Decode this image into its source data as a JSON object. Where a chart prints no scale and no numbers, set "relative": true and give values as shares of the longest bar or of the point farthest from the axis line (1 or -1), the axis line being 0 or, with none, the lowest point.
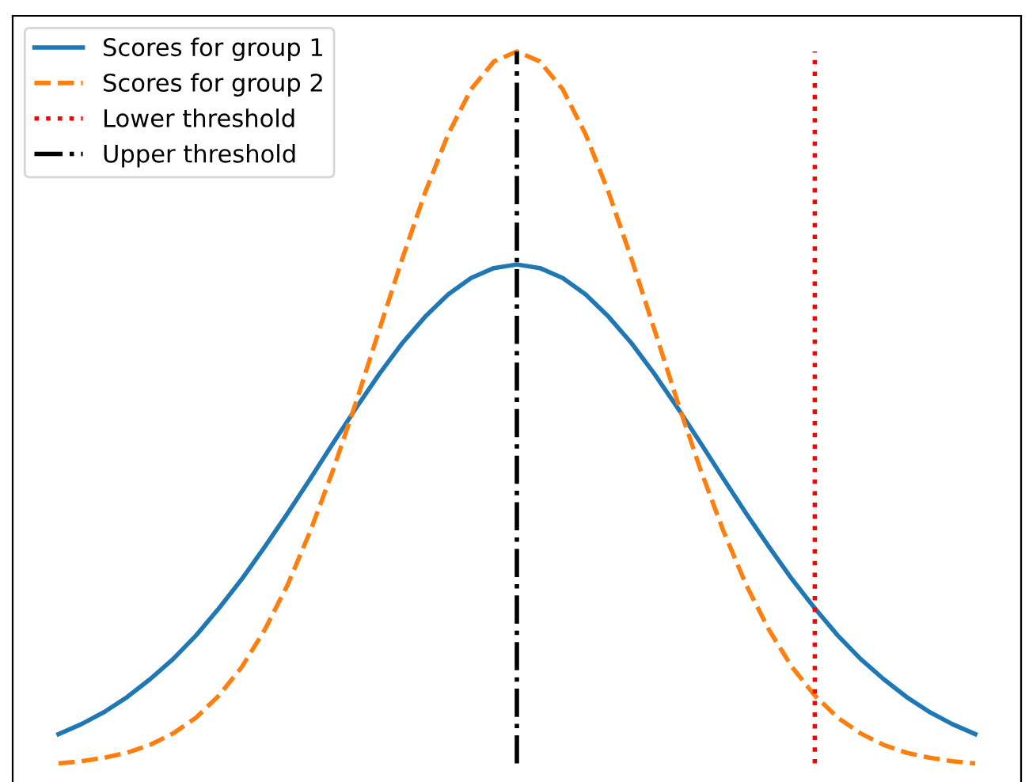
{
  "chart_data": {
    "type": "line",
    "relative": true,
    "tick_labels": false,
    "legend": "top left",
    "grid": false,
    "categories": [
      null,
      null,
      null,
      null,
      null,
      null,
      null,
      null,
      null,
      null,
      null,
      null,
      null,
      null,
      null,
      null,
      null,
      null,
      null,
      null,
      null,
      null,
      null,
      null,
      null,
      null,
      null,
      null,
      null,
      null,
      null,
      null,
      null,
      null,
      null,
      null,
      null,
      null,
      null,
      null,
      null
    ],
    "series": [
      {
        "name": "Scores for group 1",
        "color": "#1f77b4",
        "line_style": "solid",
        "values": [
          0.045,
          0.059,
          0.076,
          0.097,
          0.122,
          0.15,
          0.183,
          0.221,
          0.262,
          0.307,
          0.354,
          0.403,
          0.453,
          0.502,
          0.549,
          0.592,
          0.629,
          0.66,
          0.683,
          0.697,
          0.702,
          0.697,
          0.683,
          0.66,
          0.629,
          0.592,
          0.549,
          0.502,
          0.453,
          0.403,
          0.354,
          0.307,
          0.262,
          0.221,
          0.183,
          0.15,
          0.122,
          0.097,
          0.076,
          0.059,
          0.045
        ]
      },
      {
        "name": "Scores for group 2",
        "color": "#ff7f0e",
        "line_style": "dashed",
        "values": [
          0.004,
          0.007,
          0.012,
          0.019,
          0.03,
          0.046,
          0.068,
          0.099,
          0.139,
          0.191,
          0.254,
          0.33,
          0.416,
          0.511,
          0.611,
          0.71,
          0.803,
          0.884,
          0.947,
          0.986,
          1,
          0.986,
          0.947,
          0.884,
          0.803,
          0.71,
          0.611,
          0.511,
          0.416,
          0.33,
          0.254,
          0.191,
          0.139,
          0.099,
          0.068,
          0.046,
          0.03,
          0.019,
          0.012,
          0.007,
          0.004
        ]
      }
    ],
    "ref_lines": [
      {
        "axis": "x",
        "label": "Lower threshold",
        "color": "#ff0000",
        "line_style": "dotted"
      },
      {
        "axis": "x",
        "label": "Upper threshold",
        "color": "#000000",
        "line_style": "dashdot"
      }
    ]
  }
}
